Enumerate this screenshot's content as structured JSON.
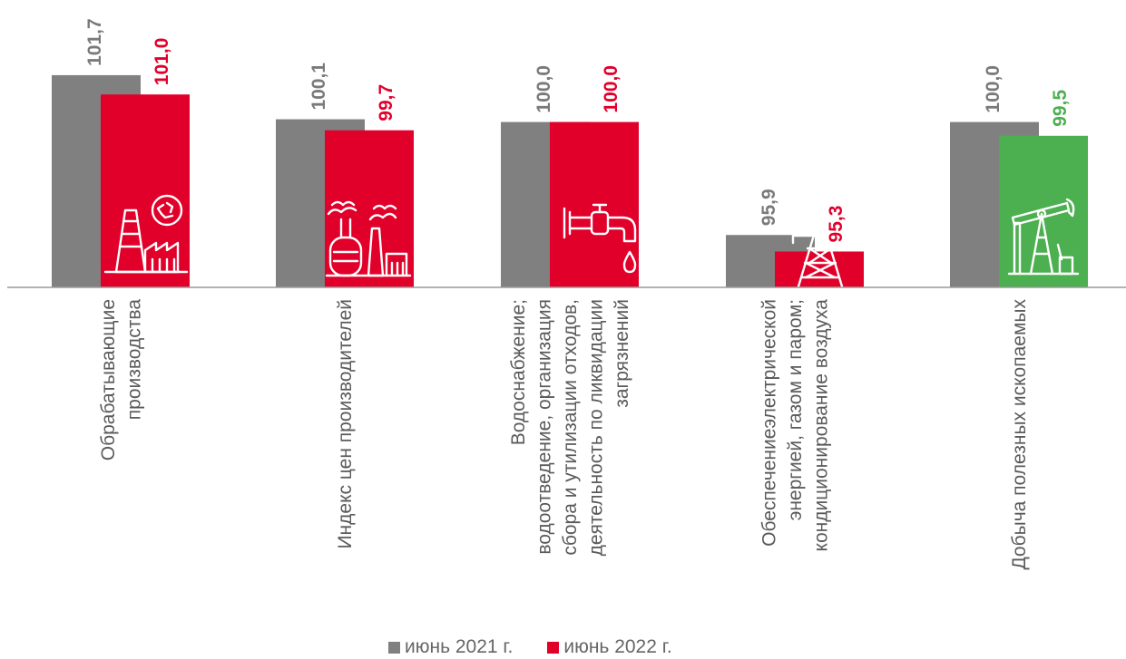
{
  "chart_data": {
    "type": "bar",
    "categories": [
      "Обрабатывающие производства",
      "Индекс цен производителей",
      "Водоснабжение; водоотведение, организация сбора и утилизации отходов, деятельность по ликвидации загрязнений",
      "Обеспечениеэлектрической энергией, газом и паром; кондиционирование воздуха",
      "Добыча полезных ископаемых"
    ],
    "category_lines": [
      [
        "Обрабатывающие",
        "производства"
      ],
      [
        "Индекс цен   производителей"
      ],
      [
        "Водоснабжение;",
        "водоотведение, организация",
        "сбора и утилизации отходов,",
        "деятельность по ликвидации",
        "загрязнений"
      ],
      [
        "Обеспечениеэлектрической",
        "энергией, газом и паром;",
        "кондиционирование воздуха"
      ],
      [
        "Добыча полезных ископаемых"
      ]
    ],
    "series": [
      {
        "name": "июнь 2021 г.",
        "values": [
          101.7,
          100.1,
          100.0,
          95.9,
          100.0
        ],
        "labels": [
          "101,7",
          "100,1",
          "100,0",
          "95,9",
          "100,0"
        ],
        "color": "#808080"
      },
      {
        "name": "июнь 2022 г.",
        "values": [
          101.0,
          99.7,
          100.0,
          95.3,
          99.5
        ],
        "labels": [
          "101,0",
          "99,7",
          "100,0",
          "95,3",
          "99,5"
        ],
        "color": "#e1002a"
      }
    ],
    "bar_colors_2022": [
      "#e1002a",
      "#e1002a",
      "#e1002a",
      "#e1002a",
      "#4caf50"
    ],
    "label_colors_2022": [
      "#e1002a",
      "#e1002a",
      "#e1002a",
      "#e1002a",
      "#4caf50"
    ],
    "baseline_value": 94.0,
    "icons": [
      "factory-recycle-icon",
      "industrial-plant-icon",
      "water-tap-icon",
      "power-pylon-icon",
      "oil-pump-icon"
    ],
    "legend_placement": "bottom",
    "grid": false
  }
}
